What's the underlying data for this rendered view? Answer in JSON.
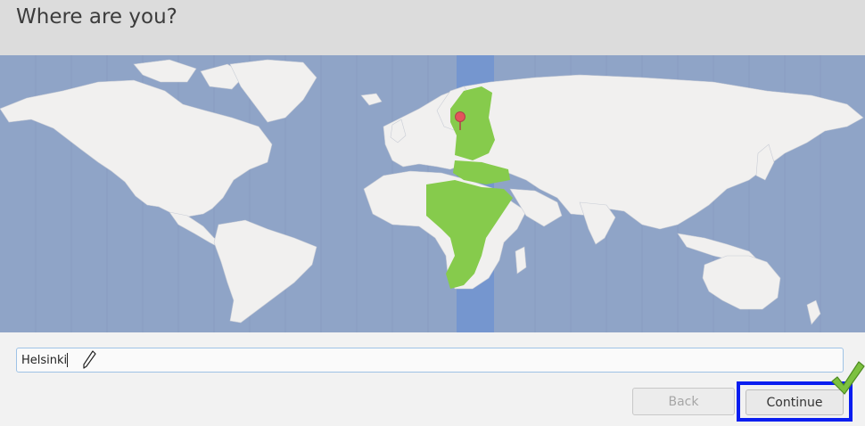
{
  "header": {
    "title": "Where are you?"
  },
  "timezone": {
    "value": "Helsinki"
  },
  "buttons": {
    "back": "Back",
    "continue": "Continue"
  },
  "colors": {
    "ocean": "#8fa4c7",
    "land": "#f1f0ef",
    "selected_zone": "#7596cf",
    "selected_region": "#86cb4c",
    "marker": "#e3545c",
    "highlight_box": "#0a1ef0",
    "checkmark": "#7cc13f"
  },
  "icons": [
    "location-pin-icon",
    "pencil-cursor-icon",
    "checkmark-icon"
  ]
}
